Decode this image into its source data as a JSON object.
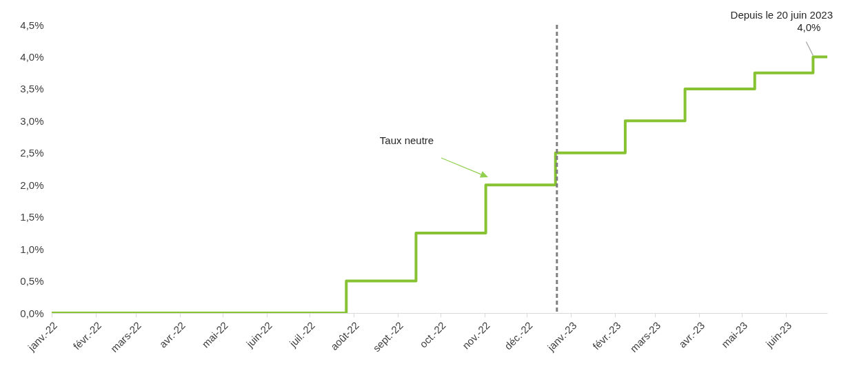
{
  "chart_data": {
    "type": "step",
    "x": [
      "2022-01-01",
      "2022-07-27",
      "2022-09-14",
      "2022-11-02",
      "2022-12-21",
      "2023-02-08",
      "2023-03-22",
      "2023-05-10",
      "2023-06-20",
      "2023-06-30"
    ],
    "series": [
      {
        "color": "#86c232",
        "values": [
          0,
          0.5,
          1.25,
          2.0,
          2.5,
          3.0,
          3.5,
          3.75,
          4.0,
          4.0
        ]
      }
    ],
    "xlim": [
      "2022-01-01",
      "2023-06-30"
    ],
    "xticks": [
      {
        "value": "2022-01-01",
        "label": "janv.-22"
      },
      {
        "value": "2022-02-01",
        "label": "févr.-22"
      },
      {
        "value": "2022-03-01",
        "label": "mars-22"
      },
      {
        "value": "2022-04-01",
        "label": "avr.-22"
      },
      {
        "value": "2022-05-01",
        "label": "mai-22"
      },
      {
        "value": "2022-06-01",
        "label": "juin-22"
      },
      {
        "value": "2022-07-01",
        "label": "juil.-22"
      },
      {
        "value": "2022-08-01",
        "label": "août-22"
      },
      {
        "value": "2022-09-01",
        "label": "sept.-22"
      },
      {
        "value": "2022-10-01",
        "label": "oct.-22"
      },
      {
        "value": "2022-11-01",
        "label": "nov.-22"
      },
      {
        "value": "2022-12-01",
        "label": "déc.-22"
      },
      {
        "value": "2023-01-01",
        "label": "janv.-23"
      },
      {
        "value": "2023-02-01",
        "label": "févr.-23"
      },
      {
        "value": "2023-03-01",
        "label": "mars-23"
      },
      {
        "value": "2023-04-01",
        "label": "avr.-23"
      },
      {
        "value": "2023-05-01",
        "label": "mai-23"
      },
      {
        "value": "2023-06-01",
        "label": "juin-23"
      }
    ],
    "ylim": [
      0,
      4.5
    ],
    "yticks": [
      {
        "value": 0,
        "label": "0,0%"
      },
      {
        "value": 0.5,
        "label": "0,5%"
      },
      {
        "value": 1,
        "label": "1,0%"
      },
      {
        "value": 1.5,
        "label": "1,5%"
      },
      {
        "value": 2,
        "label": "2,0%"
      },
      {
        "value": 2.5,
        "label": "2,5%"
      },
      {
        "value": 3,
        "label": "3,0%"
      },
      {
        "value": 3.5,
        "label": "3,5%"
      },
      {
        "value": 4,
        "label": "4,0%"
      },
      {
        "value": 4.5,
        "label": "4,5%"
      }
    ],
    "ref_lines": [
      {
        "axis": "x",
        "value": "2022-12-22",
        "color": "#7f7f7f",
        "line_style": "dashed"
      }
    ],
    "annotations": [
      "Depuis le 20 juin 2023",
      {
        "text": "4,0%",
        "x": "2023-06-20",
        "y": 4.0
      },
      "Taux neutre"
    ]
  }
}
